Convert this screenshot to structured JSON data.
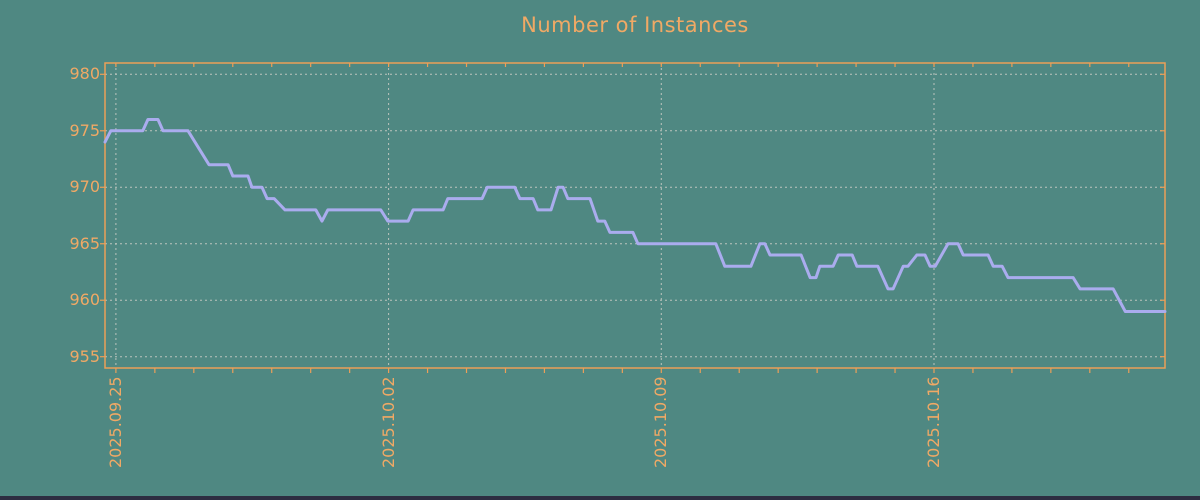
{
  "page": {
    "background_color": "#4f8882",
    "bottom_bar_color": "#2d2d41"
  },
  "chart_data": {
    "type": "line",
    "title": "Number of Instances",
    "title_color": "#f0a965",
    "axis_color": "#ec9f58",
    "tick_label_color": "#f0a965",
    "grid_color": "#bbc4bd",
    "line_color": "#aaacee",
    "grid": "on",
    "legend_position": "none",
    "xlabel": "",
    "ylabel": "",
    "ylim": [
      954,
      981
    ],
    "y_ticks": [
      955,
      960,
      965,
      970,
      975,
      980
    ],
    "xlim_days": [
      -0.28,
      26.93
    ],
    "x_minor_tick_every_days": 1,
    "x_ticks": [
      {
        "label": "2025.09.25",
        "d": 0
      },
      {
        "label": "2025.10.02",
        "d": 7
      },
      {
        "label": "2025.10.09",
        "d": 14
      },
      {
        "label": "2025.10.16",
        "d": 21
      }
    ],
    "series_name": "Number of Instances",
    "points": [
      [
        -0.28,
        974
      ],
      [
        -0.13,
        975
      ],
      [
        0.69,
        975
      ],
      [
        0.82,
        976
      ],
      [
        1.08,
        976
      ],
      [
        1.21,
        975
      ],
      [
        1.85,
        975
      ],
      [
        2.39,
        972
      ],
      [
        2.88,
        972
      ],
      [
        3.0,
        971
      ],
      [
        3.39,
        971
      ],
      [
        3.49,
        970
      ],
      [
        3.75,
        970
      ],
      [
        3.88,
        969
      ],
      [
        4.06,
        969
      ],
      [
        4.34,
        968
      ],
      [
        5.13,
        968
      ],
      [
        5.29,
        967
      ],
      [
        5.44,
        968
      ],
      [
        6.8,
        968
      ],
      [
        6.98,
        967
      ],
      [
        7.5,
        967
      ],
      [
        7.63,
        968
      ],
      [
        8.4,
        968
      ],
      [
        8.52,
        969
      ],
      [
        9.4,
        969
      ],
      [
        9.53,
        970
      ],
      [
        10.24,
        970
      ],
      [
        10.37,
        969
      ],
      [
        10.71,
        969
      ],
      [
        10.83,
        968
      ],
      [
        11.17,
        968
      ],
      [
        11.35,
        970
      ],
      [
        11.48,
        970
      ],
      [
        11.6,
        969
      ],
      [
        12.17,
        969
      ],
      [
        12.37,
        967
      ],
      [
        12.55,
        967
      ],
      [
        12.68,
        966
      ],
      [
        13.27,
        966
      ],
      [
        13.4,
        965
      ],
      [
        15.4,
        965
      ],
      [
        15.63,
        963
      ],
      [
        16.3,
        963
      ],
      [
        16.53,
        965
      ],
      [
        16.66,
        965
      ],
      [
        16.79,
        964
      ],
      [
        17.59,
        964
      ],
      [
        17.82,
        962
      ],
      [
        17.97,
        962
      ],
      [
        18.07,
        963
      ],
      [
        18.41,
        963
      ],
      [
        18.54,
        964
      ],
      [
        18.9,
        964
      ],
      [
        19.02,
        963
      ],
      [
        19.56,
        963
      ],
      [
        19.82,
        961
      ],
      [
        19.95,
        961
      ],
      [
        20.21,
        963
      ],
      [
        20.33,
        963
      ],
      [
        20.56,
        964
      ],
      [
        20.77,
        964
      ],
      [
        20.9,
        963
      ],
      [
        21.03,
        963
      ],
      [
        21.36,
        965
      ],
      [
        21.62,
        965
      ],
      [
        21.75,
        964
      ],
      [
        22.39,
        964
      ],
      [
        22.52,
        963
      ],
      [
        22.75,
        963
      ],
      [
        22.9,
        962
      ],
      [
        24.57,
        962
      ],
      [
        24.75,
        961
      ],
      [
        25.6,
        961
      ],
      [
        25.91,
        959
      ],
      [
        26.93,
        959
      ]
    ]
  }
}
